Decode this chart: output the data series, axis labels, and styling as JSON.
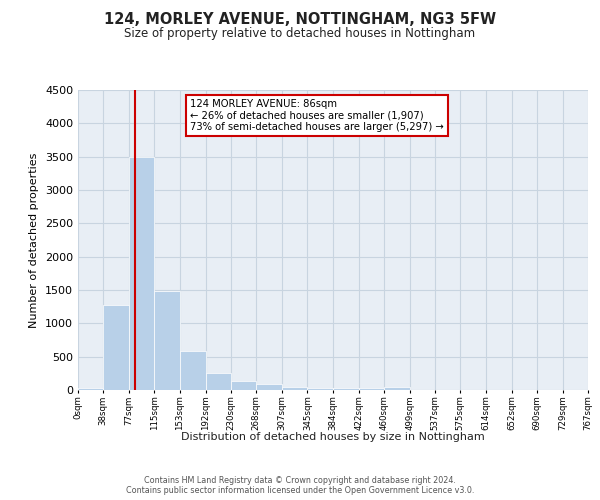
{
  "title": "124, MORLEY AVENUE, NOTTINGHAM, NG3 5FW",
  "subtitle": "Size of property relative to detached houses in Nottingham",
  "xlabel": "Distribution of detached houses by size in Nottingham",
  "ylabel": "Number of detached properties",
  "property_size": 86,
  "annotation_line1": "124 MORLEY AVENUE: 86sqm",
  "annotation_line2": "← 26% of detached houses are smaller (1,907)",
  "annotation_line3": "73% of semi-detached houses are larger (5,297) →",
  "bin_edges": [
    0,
    38,
    77,
    115,
    153,
    192,
    230,
    268,
    307,
    345,
    384,
    422,
    460,
    499,
    537,
    575,
    614,
    652,
    690,
    729,
    767
  ],
  "bar_heights": [
    30,
    1270,
    3500,
    1480,
    580,
    250,
    140,
    90,
    50,
    30,
    30,
    30,
    50,
    0,
    0,
    0,
    0,
    0,
    0,
    0
  ],
  "bar_color": "#b8d0e8",
  "red_line_color": "#cc0000",
  "annotation_box_color": "#cc0000",
  "background_color": "#ffffff",
  "plot_bg_color": "#e8eef5",
  "grid_color": "#c8d4e0",
  "ylim": [
    0,
    4500
  ],
  "footer_line1": "Contains HM Land Registry data © Crown copyright and database right 2024.",
  "footer_line2": "Contains public sector information licensed under the Open Government Licence v3.0."
}
